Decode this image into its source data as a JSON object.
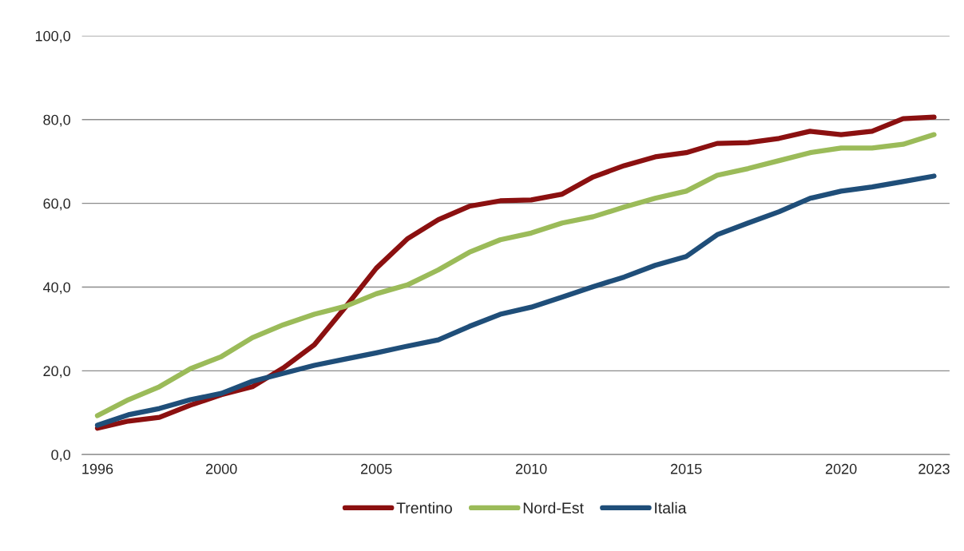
{
  "chart_data": {
    "type": "line",
    "categories": [
      "1996",
      null,
      null,
      null,
      "2000",
      null,
      null,
      null,
      null,
      "2005",
      null,
      null,
      null,
      null,
      "2010",
      null,
      null,
      null,
      null,
      "2015",
      null,
      null,
      null,
      null,
      "2020",
      null,
      null,
      "2023"
    ],
    "series": [
      {
        "name": "Trentino",
        "color": "#8b1010",
        "values": [
          6.3,
          8.0,
          8.9,
          11.8,
          14.3,
          16.2,
          20.7,
          26.2,
          35.2,
          44.5,
          51.5,
          56.1,
          59.3,
          60.6,
          60.8,
          62.2,
          66.3,
          69.0,
          71.1,
          72.1,
          74.3,
          74.5,
          75.5,
          77.2,
          76.4,
          77.2,
          80.2,
          80.6
        ]
      },
      {
        "name": "Nord-Est",
        "color": "#9bbb59",
        "values": [
          9.3,
          13.1,
          16.2,
          20.5,
          23.4,
          27.9,
          31.0,
          33.5,
          35.4,
          38.4,
          40.5,
          44.1,
          48.3,
          51.3,
          52.9,
          55.3,
          56.8,
          59.1,
          61.2,
          62.9,
          66.7,
          68.3,
          70.2,
          72.1,
          73.2,
          73.2,
          74.1,
          76.4
        ]
      },
      {
        "name": "Italia",
        "color": "#1f4e79",
        "values": [
          7.0,
          9.5,
          11.0,
          13.1,
          14.6,
          17.5,
          19.4,
          21.3,
          22.8,
          24.3,
          25.9,
          27.4,
          30.6,
          33.5,
          35.2,
          37.6,
          40.1,
          42.4,
          45.2,
          47.3,
          52.5,
          55.3,
          58.0,
          61.2,
          62.9,
          63.9,
          65.2,
          66.5
        ]
      }
    ],
    "ylim": [
      0,
      100
    ],
    "yticks": [
      {
        "value": 0,
        "label": "0,0"
      },
      {
        "value": 20,
        "label": "20,0"
      },
      {
        "value": 40,
        "label": "40,0"
      },
      {
        "value": 60,
        "label": "60,0"
      },
      {
        "value": 80,
        "label": "80,0"
      },
      {
        "value": 100,
        "label": "100,0"
      }
    ],
    "grid": "y",
    "legend": "bottom",
    "marker": "none",
    "line_style": "solid"
  }
}
